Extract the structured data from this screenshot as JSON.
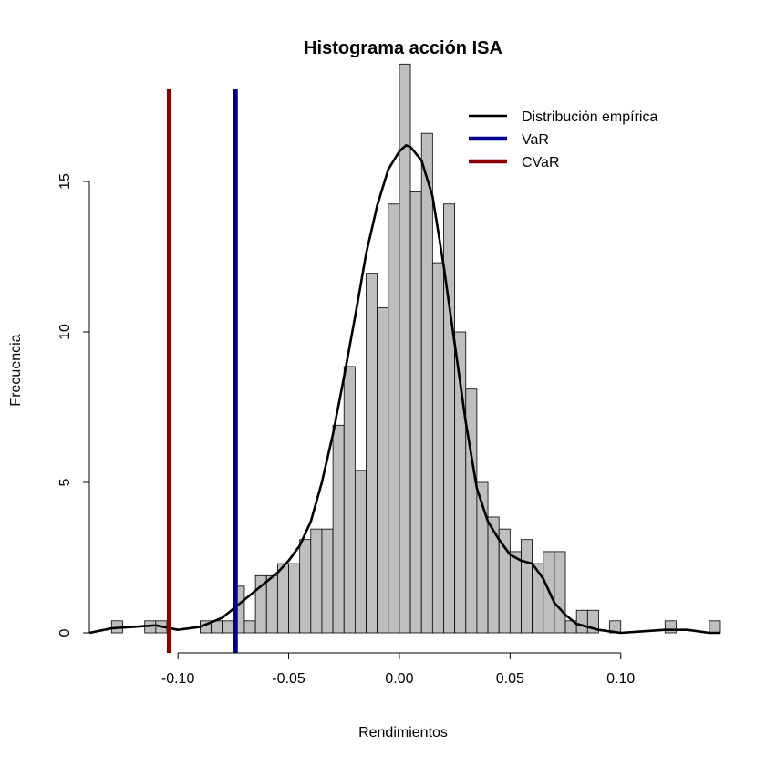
{
  "chart_data": {
    "type": "histogram",
    "title": "Histograma acción ISA",
    "xlabel": "Rendimientos",
    "ylabel": "Frecuencia",
    "xlim": [
      -0.14,
      0.145
    ],
    "ylim": [
      0,
      18
    ],
    "x_ticks": [
      -0.1,
      -0.05,
      0.0,
      0.05,
      0.1
    ],
    "x_tick_labels": [
      "-0.10",
      "-0.05",
      "0.00",
      "0.05",
      "0.10"
    ],
    "y_ticks": [
      0,
      5,
      10,
      15
    ],
    "y_tick_labels": [
      "0",
      "5",
      "10",
      "15"
    ],
    "bin_width": 0.005,
    "bins": [
      {
        "x0": -0.13,
        "value": 0.4
      },
      {
        "x0": -0.125,
        "value": 0.0
      },
      {
        "x0": -0.12,
        "value": 0.0
      },
      {
        "x0": -0.115,
        "value": 0.4
      },
      {
        "x0": -0.11,
        "value": 0.4
      },
      {
        "x0": -0.105,
        "value": 0.0
      },
      {
        "x0": -0.1,
        "value": 0.0
      },
      {
        "x0": -0.095,
        "value": 0.0
      },
      {
        "x0": -0.09,
        "value": 0.4
      },
      {
        "x0": -0.085,
        "value": 0.4
      },
      {
        "x0": -0.08,
        "value": 0.4
      },
      {
        "x0": -0.075,
        "value": 1.55
      },
      {
        "x0": -0.07,
        "value": 0.4
      },
      {
        "x0": -0.065,
        "value": 1.9
      },
      {
        "x0": -0.06,
        "value": 1.9
      },
      {
        "x0": -0.055,
        "value": 2.3
      },
      {
        "x0": -0.05,
        "value": 2.3
      },
      {
        "x0": -0.045,
        "value": 3.1
      },
      {
        "x0": -0.04,
        "value": 3.45
      },
      {
        "x0": -0.035,
        "value": 3.45
      },
      {
        "x0": -0.03,
        "value": 6.9
      },
      {
        "x0": -0.025,
        "value": 8.85
      },
      {
        "x0": -0.02,
        "value": 5.4
      },
      {
        "x0": -0.015,
        "value": 11.95
      },
      {
        "x0": -0.01,
        "value": 10.8
      },
      {
        "x0": -0.005,
        "value": 14.25
      },
      {
        "x0": 0.0,
        "value": 18.9
      },
      {
        "x0": 0.005,
        "value": 14.65
      },
      {
        "x0": 0.01,
        "value": 16.6
      },
      {
        "x0": 0.015,
        "value": 12.3
      },
      {
        "x0": 0.02,
        "value": 14.25
      },
      {
        "x0": 0.025,
        "value": 10.0
      },
      {
        "x0": 0.03,
        "value": 8.1
      },
      {
        "x0": 0.035,
        "value": 5.0
      },
      {
        "x0": 0.04,
        "value": 3.85
      },
      {
        "x0": 0.045,
        "value": 3.45
      },
      {
        "x0": 0.05,
        "value": 2.7
      },
      {
        "x0": 0.055,
        "value": 3.1
      },
      {
        "x0": 0.06,
        "value": 2.3
      },
      {
        "x0": 0.065,
        "value": 2.7
      },
      {
        "x0": 0.07,
        "value": 2.7
      },
      {
        "x0": 0.075,
        "value": 0.4
      },
      {
        "x0": 0.08,
        "value": 0.75
      },
      {
        "x0": 0.085,
        "value": 0.75
      },
      {
        "x0": 0.09,
        "value": 0.0
      },
      {
        "x0": 0.095,
        "value": 0.4
      },
      {
        "x0": 0.1,
        "value": 0.0
      },
      {
        "x0": 0.105,
        "value": 0.0
      },
      {
        "x0": 0.11,
        "value": 0.0
      },
      {
        "x0": 0.115,
        "value": 0.0
      },
      {
        "x0": 0.12,
        "value": 0.4
      },
      {
        "x0": 0.125,
        "value": 0.0
      },
      {
        "x0": 0.13,
        "value": 0.0
      },
      {
        "x0": 0.135,
        "value": 0.0
      },
      {
        "x0": 0.14,
        "value": 0.4
      }
    ],
    "density": {
      "name": "Distribución empírica",
      "color": "#000000",
      "x": [
        -0.14,
        -0.13,
        -0.12,
        -0.11,
        -0.1,
        -0.09,
        -0.08,
        -0.075,
        -0.07,
        -0.065,
        -0.06,
        -0.055,
        -0.05,
        -0.045,
        -0.04,
        -0.035,
        -0.03,
        -0.025,
        -0.02,
        -0.015,
        -0.01,
        -0.005,
        0.0,
        0.003,
        0.005,
        0.01,
        0.015,
        0.02,
        0.025,
        0.03,
        0.035,
        0.04,
        0.045,
        0.05,
        0.055,
        0.06,
        0.065,
        0.07,
        0.075,
        0.08,
        0.09,
        0.1,
        0.11,
        0.12,
        0.13,
        0.14,
        0.145
      ],
      "y": [
        0.0,
        0.15,
        0.2,
        0.25,
        0.1,
        0.2,
        0.5,
        0.8,
        1.1,
        1.4,
        1.7,
        2.0,
        2.4,
        2.9,
        3.7,
        5.0,
        6.6,
        8.5,
        10.5,
        12.6,
        14.2,
        15.4,
        16.0,
        16.2,
        16.15,
        15.7,
        14.5,
        12.2,
        9.6,
        7.0,
        4.8,
        3.7,
        3.1,
        2.6,
        2.4,
        2.3,
        1.8,
        1.0,
        0.6,
        0.3,
        0.1,
        0.0,
        0.05,
        0.1,
        0.1,
        0.0,
        0.0
      ]
    },
    "vlines": [
      {
        "name": "VaR",
        "x": -0.074,
        "color": "#00008B"
      },
      {
        "name": "CVaR",
        "x": -0.104,
        "color": "#8B0000"
      }
    ],
    "legend": {
      "position": "top-right",
      "items": [
        {
          "label": "Distribución empírica",
          "color": "#000000"
        },
        {
          "label": "VaR",
          "color": "#00008B"
        },
        {
          "label": "CVaR",
          "color": "#8B0000"
        }
      ]
    },
    "bar_fill": "#BEBEBE",
    "bar_stroke": "#000000"
  }
}
